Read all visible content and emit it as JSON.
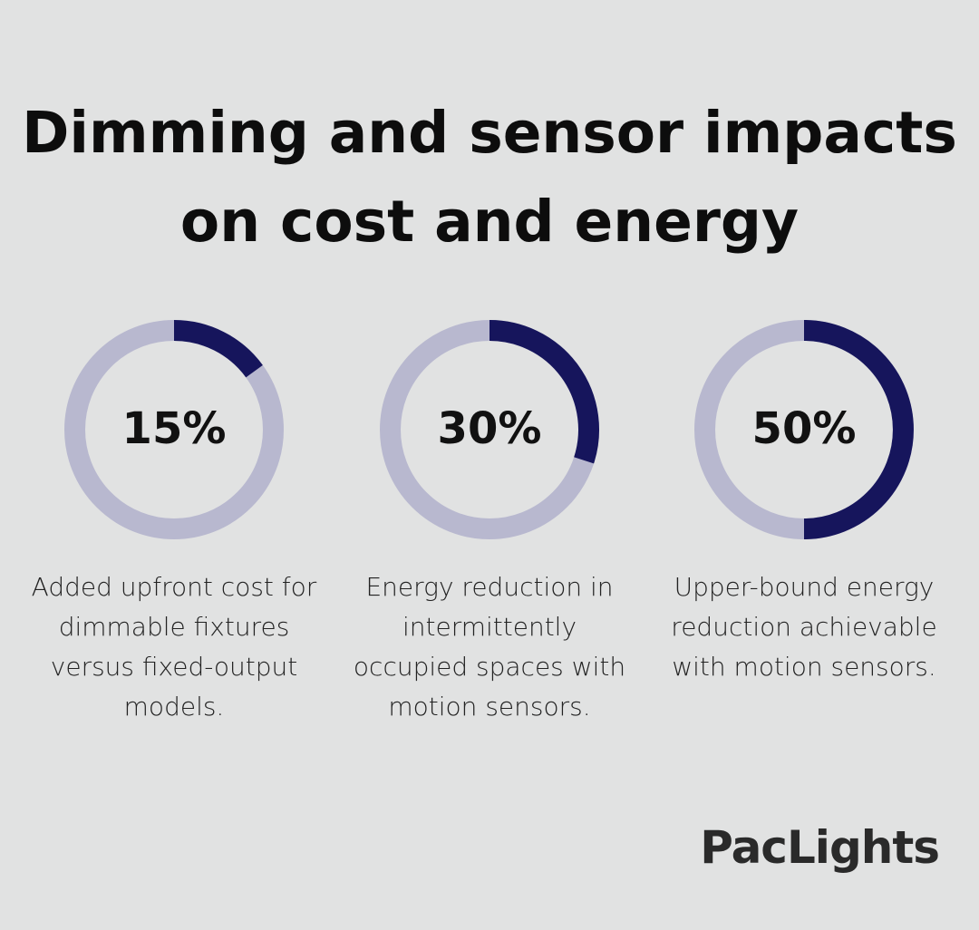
{
  "title": "Dimming and sensor impacts on cost and energy",
  "chart_data": [
    {
      "type": "donut",
      "values": [
        15
      ],
      "value_labels": [
        "15%"
      ],
      "color": "#16155c",
      "track_color": "#b8b8cf",
      "caption": "Added upfront cost for dimmable fixtures versus fixed-output models."
    },
    {
      "type": "donut",
      "values": [
        30
      ],
      "value_labels": [
        "30%"
      ],
      "color": "#16155c",
      "track_color": "#b8b8cf",
      "caption": "Energy reduction in intermittently occupied spaces with motion sensors."
    },
    {
      "type": "donut",
      "values": [
        50
      ],
      "value_labels": [
        "50%"
      ],
      "color": "#16155c",
      "track_color": "#b8b8cf",
      "caption": "Upper-bound energy reduction achievable with motion sensors."
    }
  ],
  "brand": "PacLights"
}
